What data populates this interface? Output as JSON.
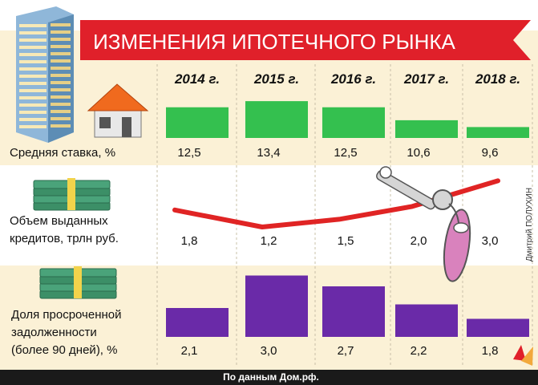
{
  "header": {
    "title": "ИЗМЕНЕНИЯ ИПОТЕЧНОГО РЫНКА"
  },
  "years": [
    "2014 г.",
    "2015 г.",
    "2016 г.",
    "2017 г.",
    "2018 г."
  ],
  "rows": [
    {
      "label_lines": [
        "Средняя ставка, %"
      ],
      "values_text": [
        "12,5",
        "13,4",
        "12,5",
        "10,6",
        "9,6"
      ]
    },
    {
      "label_lines": [
        "Объем выданных",
        "кредитов, трлн руб."
      ],
      "values_text": [
        "1,8",
        "1,2",
        "1,5",
        "2,0",
        "3,0"
      ]
    },
    {
      "label_lines": [
        "Доля просроченной",
        "задолженности",
        "(более 90 дней), %"
      ],
      "values_text": [
        "2,1",
        "3,0",
        "2,7",
        "2,2",
        "1,8"
      ]
    }
  ],
  "footer": {
    "source": "По данным Дом.рф."
  },
  "credit": "Дмитрий ПОЛУХИН",
  "colors": {
    "rate": "#34c04f",
    "volume_line": "#e02424",
    "overdue": "#6a2aa8",
    "band": "#fbf1d6",
    "title_bg": "#e0202a",
    "footer_bg": "#1a1a1a"
  },
  "icons": [
    "apartment-building-icon",
    "house-icon",
    "money-stack-icon",
    "money-stack-icon",
    "key-icon"
  ],
  "chart_data": [
    {
      "type": "bar",
      "categories": [
        "2014 г.",
        "2015 г.",
        "2016 г.",
        "2017 г.",
        "2018 г."
      ],
      "series": [
        {
          "name": "Средняя ставка, %",
          "values": [
            12.5,
            13.4,
            12.5,
            10.6,
            9.6
          ]
        }
      ]
    },
    {
      "type": "line",
      "categories": [
        "2014 г.",
        "2015 г.",
        "2016 г.",
        "2017 г.",
        "2018 г."
      ],
      "series": [
        {
          "name": "Объем выданных кредитов, трлн руб.",
          "values": [
            1.8,
            1.2,
            1.5,
            2.0,
            3.0
          ]
        }
      ]
    },
    {
      "type": "bar",
      "categories": [
        "2014 г.",
        "2015 г.",
        "2016 г.",
        "2017 г.",
        "2018 г."
      ],
      "series": [
        {
          "name": "Доля просроченной задолженности (более 90 дней), %",
          "values": [
            2.1,
            3.0,
            2.7,
            2.2,
            1.8
          ]
        }
      ]
    }
  ]
}
